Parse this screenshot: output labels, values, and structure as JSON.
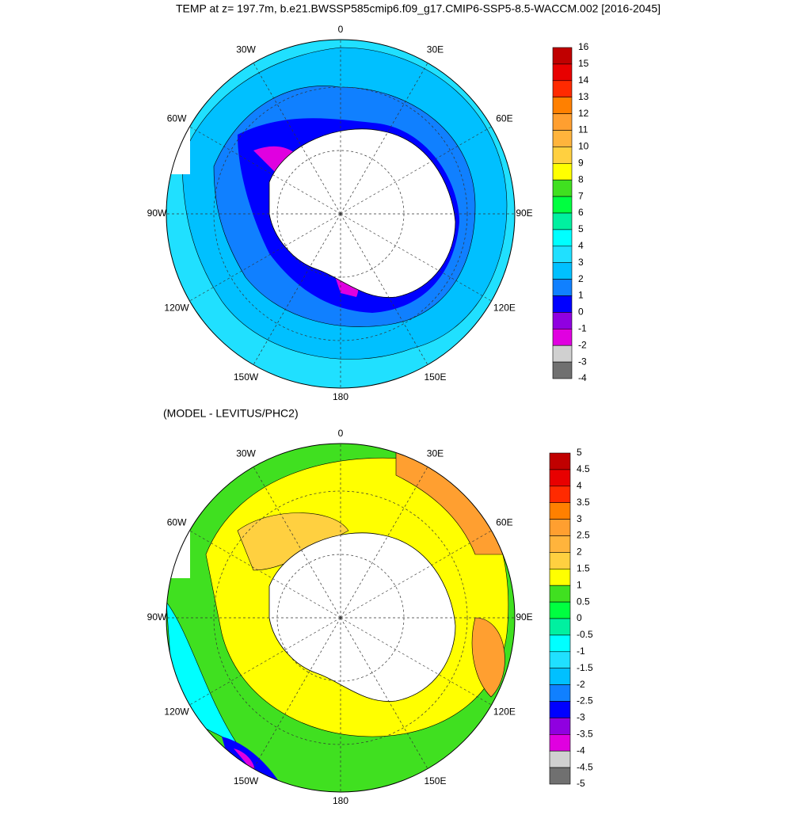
{
  "title": "TEMP at z= 197.7m, b.e21.BWSSP585cmip6.f09_g17.CMIP6-SSP5-8.5-WACCM.002 [2016-2045]",
  "panels": [
    {
      "lon_labels": [
        "0",
        "30E",
        "60E",
        "90E",
        "120E",
        "150E",
        "180",
        "150W",
        "120W",
        "90W",
        "60W",
        "30W"
      ],
      "colorbar": {
        "labels": [
          "16",
          "15",
          "14",
          "13",
          "12",
          "11",
          "10",
          "9",
          "8",
          "7",
          "6",
          "5",
          "4",
          "3",
          "2",
          "1",
          "0",
          "-1",
          "-2",
          "-3",
          "-4"
        ],
        "colors": [
          "#c00000",
          "#e80000",
          "#ff2a00",
          "#ff8000",
          "#ff9f30",
          "#ffb43c",
          "#ffd040",
          "#ffff00",
          "#40e020",
          "#00ff40",
          "#00f0a0",
          "#00ffff",
          "#20e0ff",
          "#00c0ff",
          "#1080ff",
          "#0000ff",
          "#9000e0",
          "#e000e0",
          "#d0d0d0",
          "#707070"
        ]
      }
    },
    {
      "subtitle": "(MODEL - LEVITUS/PHC2)",
      "lon_labels": [
        "0",
        "30E",
        "60E",
        "90E",
        "120E",
        "150E",
        "180",
        "150W",
        "120W",
        "90W",
        "60W",
        "30W"
      ],
      "colorbar": {
        "labels": [
          "5",
          "4.5",
          "4",
          "3.5",
          "3",
          "2.5",
          "2",
          "1.5",
          "1",
          "0.5",
          "0",
          "-0.5",
          "-1",
          "-1.5",
          "-2",
          "-2.5",
          "-3",
          "-3.5",
          "-4",
          "-4.5",
          "-5"
        ],
        "colors": [
          "#c00000",
          "#e80000",
          "#ff2a00",
          "#ff8000",
          "#ff9f30",
          "#ffb43c",
          "#ffd040",
          "#ffff00",
          "#40e020",
          "#00ff40",
          "#00f0a0",
          "#00ffff",
          "#20e0ff",
          "#00c0ff",
          "#1080ff",
          "#0000ff",
          "#9000e0",
          "#e000e0",
          "#d0d0d0",
          "#707070"
        ]
      }
    }
  ]
}
